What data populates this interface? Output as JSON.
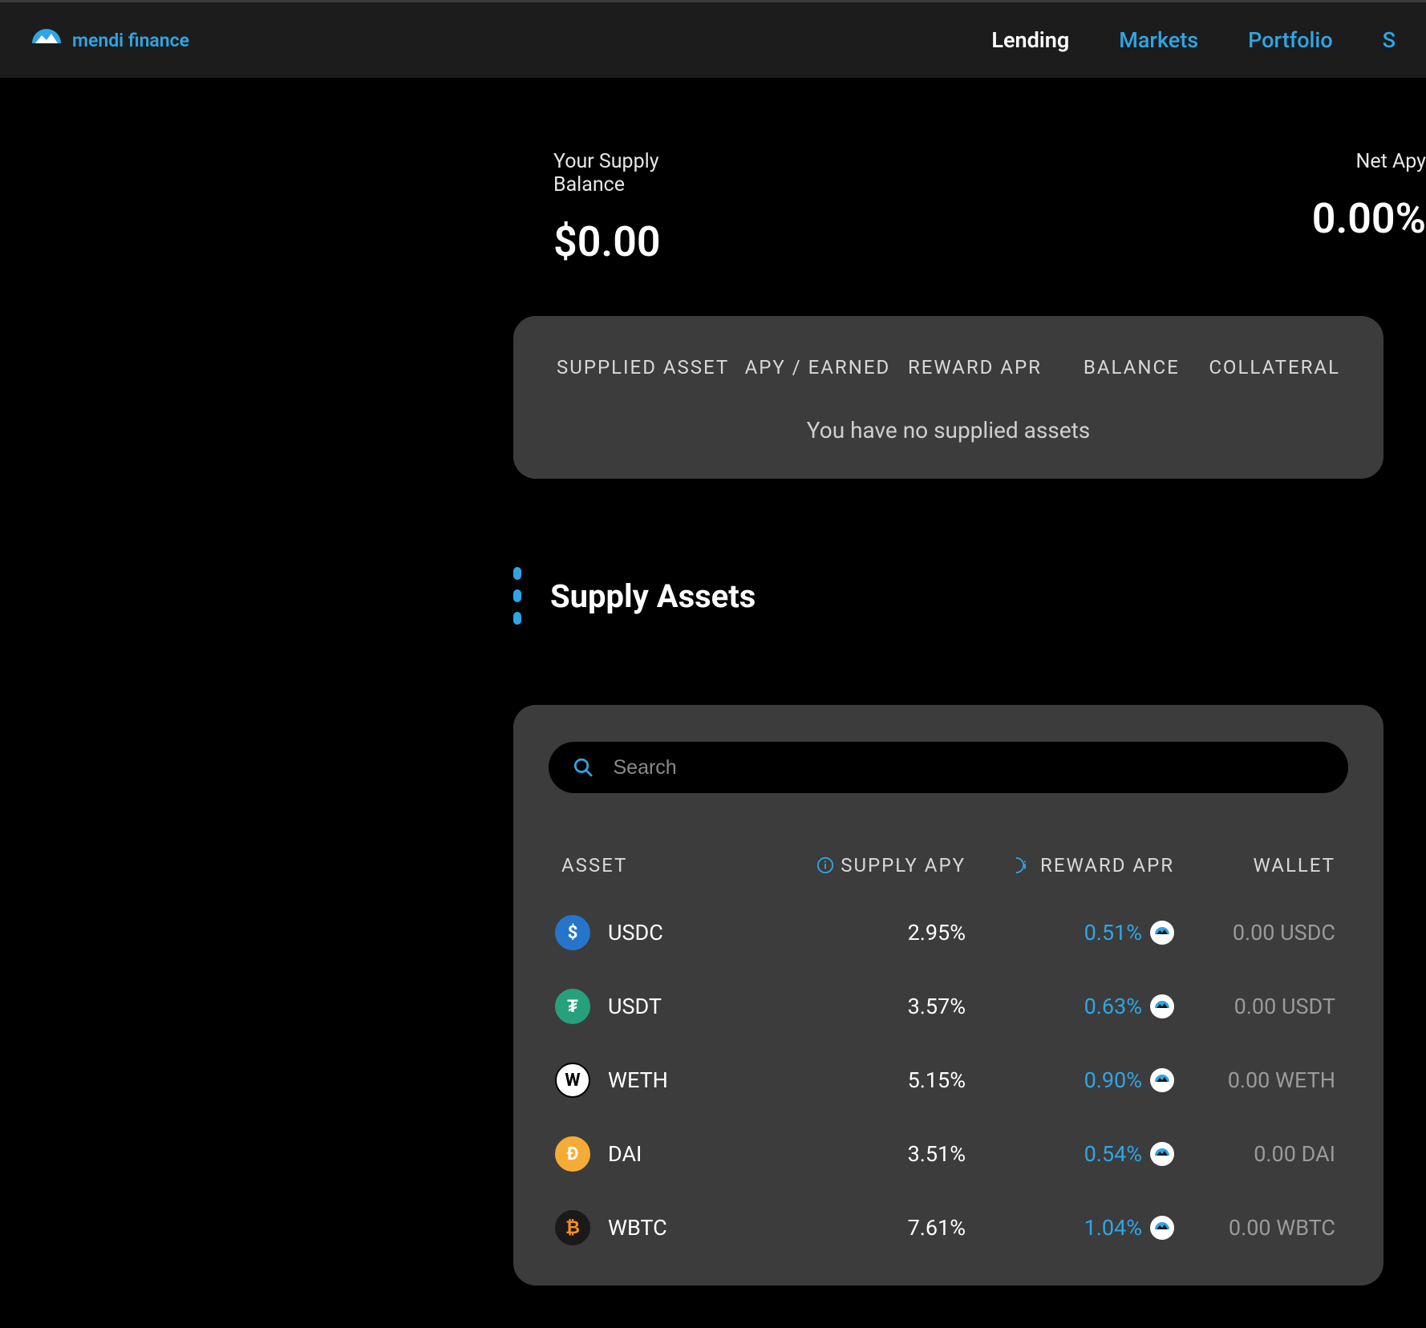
{
  "brand": {
    "name": "mendi finance",
    "accent": "#2ea6e6"
  },
  "nav": {
    "lending": "Lending",
    "markets": "Markets",
    "portfolio": "Portfolio",
    "extra": "S"
  },
  "summary": {
    "supply_label": "Your Supply Balance",
    "supply_value": "$0.00",
    "netapy_label": "Net Apy",
    "netapy_value": "0.00%"
  },
  "supplied_card": {
    "cols": {
      "asset": "SUPPLIED ASSET",
      "apy": "APY / EARNED",
      "reward": "REWARD APR",
      "balance": "BALANCE",
      "collateral": "COLLATERAL"
    },
    "empty": "You have no supplied assets"
  },
  "section_title": "Supply Assets",
  "search": {
    "placeholder": "Search"
  },
  "assets_table": {
    "cols": {
      "asset": "ASSET",
      "supply": "SUPPLY APY",
      "reward": "REWARD APR",
      "wallet": "WALLET"
    },
    "rows": [
      {
        "symbol": "USDC",
        "apy": "2.95%",
        "reward": "0.51%",
        "wallet": "0.00 USDC",
        "icon_bg": "#2775ca",
        "icon_fg": "#ffffff",
        "glyph": "$"
      },
      {
        "symbol": "USDT",
        "apy": "3.57%",
        "reward": "0.63%",
        "wallet": "0.00 USDT",
        "icon_bg": "#26a17b",
        "icon_fg": "#ffffff",
        "glyph": "₮"
      },
      {
        "symbol": "WETH",
        "apy": "5.15%",
        "reward": "0.90%",
        "wallet": "0.00 WETH",
        "icon_bg": "#ffffff",
        "icon_fg": "#000000",
        "glyph": "W"
      },
      {
        "symbol": "DAI",
        "apy": "3.51%",
        "reward": "0.54%",
        "wallet": "0.00 DAI",
        "icon_bg": "#f5ac37",
        "icon_fg": "#ffffff",
        "glyph": "Ð"
      },
      {
        "symbol": "WBTC",
        "apy": "7.61%",
        "reward": "1.04%",
        "wallet": "0.00 WBTC",
        "icon_bg": "#1a1a1a",
        "icon_fg": "#f7931a",
        "glyph": "₿"
      }
    ]
  },
  "colors": {
    "card_bg": "#3c3c3c",
    "header_bg": "#1c1c1c",
    "muted": "#9a9a9a",
    "text": "#ffffff"
  }
}
